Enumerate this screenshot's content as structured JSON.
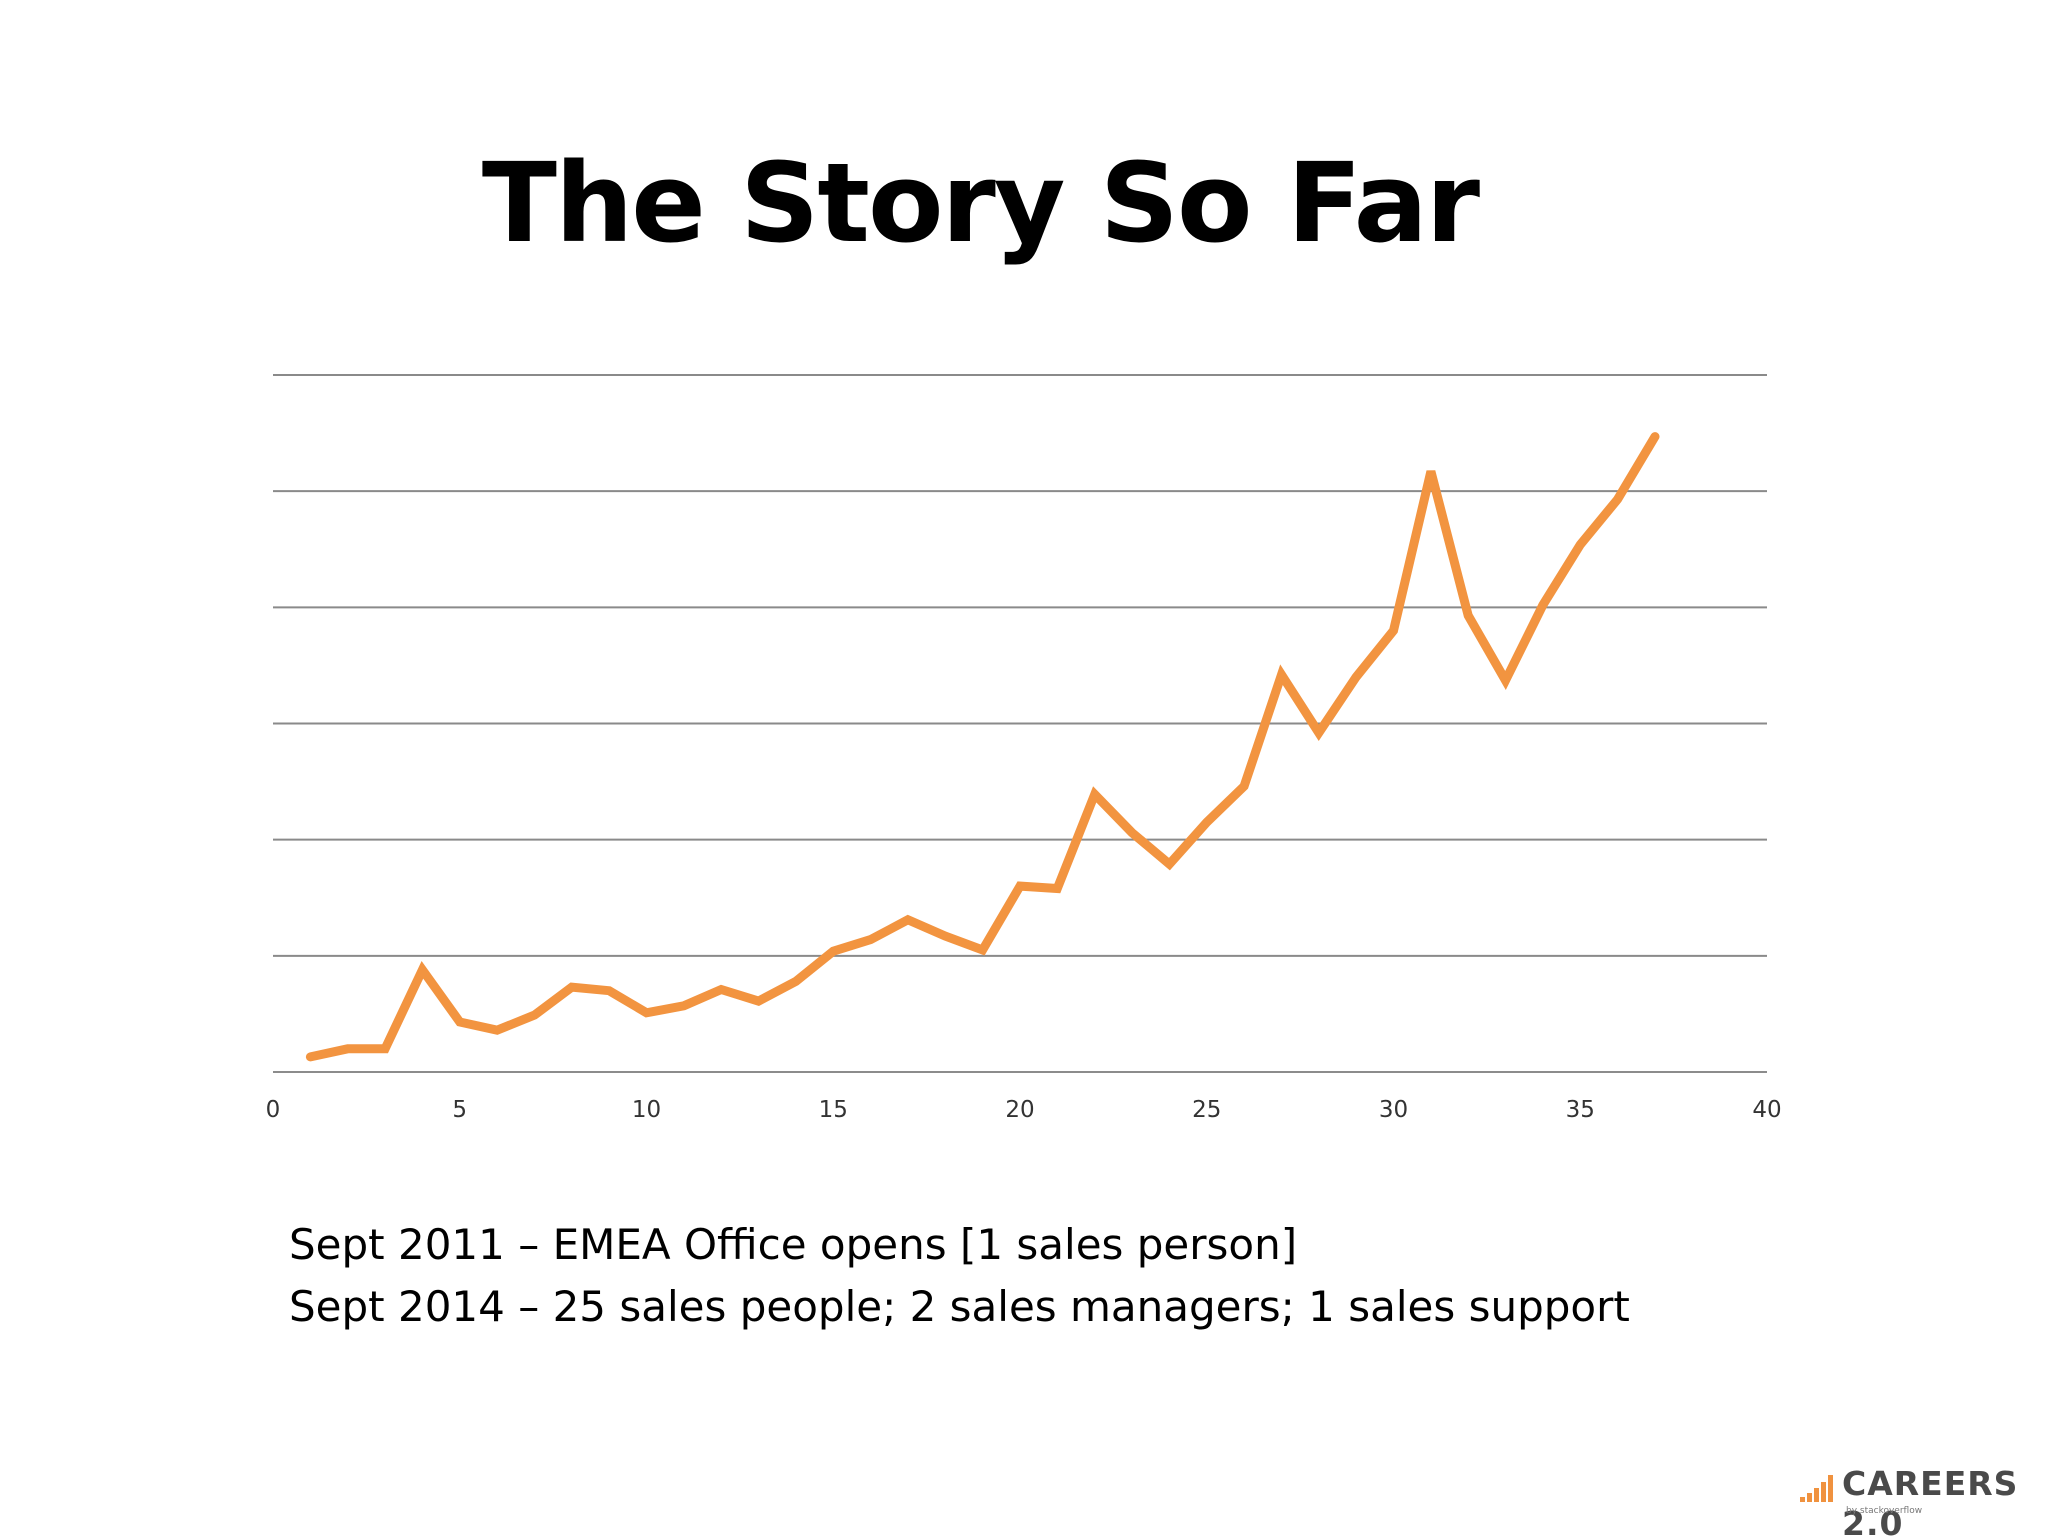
{
  "title": "The Story So Far",
  "notes": [
    "Sept 2011 – EMEA Office opens [1 sales person]",
    "Sept 2014 – 25 sales people; 2 sales managers; 1 sales support"
  ],
  "logo": {
    "text": "CAREERS 2.0",
    "sub": "by stackoverflow",
    "accent_color": "#f0923f"
  },
  "chart_data": {
    "type": "line",
    "title": "",
    "xlabel": "",
    "ylabel": "",
    "xlim": [
      0,
      40
    ],
    "ylim": [
      0,
      6
    ],
    "x_ticks": [
      0,
      5,
      10,
      15,
      20,
      25,
      30,
      35,
      40
    ],
    "y_grid": [
      0,
      1,
      2,
      3,
      4,
      5,
      6
    ],
    "y_tick_labels_shown": false,
    "grid": true,
    "series": [
      {
        "color": "#f29440",
        "x": [
          1,
          2,
          3,
          4,
          5,
          6,
          7,
          8,
          9,
          10,
          11,
          12,
          13,
          14,
          15,
          16,
          17,
          18,
          19,
          20,
          21,
          22,
          23,
          24,
          25,
          26,
          27,
          28,
          29,
          30,
          31,
          32,
          33,
          34,
          35,
          36,
          37
        ],
        "values": [
          0.13,
          0.2,
          0.2,
          0.88,
          0.43,
          0.36,
          0.49,
          0.73,
          0.7,
          0.51,
          0.57,
          0.71,
          0.61,
          0.78,
          1.04,
          1.14,
          1.31,
          1.17,
          1.05,
          1.6,
          1.58,
          2.39,
          2.06,
          1.79,
          2.15,
          2.46,
          3.42,
          2.92,
          3.4,
          3.8,
          5.17,
          3.93,
          3.37,
          4.02,
          4.54,
          4.93,
          5.47
        ]
      }
    ]
  }
}
